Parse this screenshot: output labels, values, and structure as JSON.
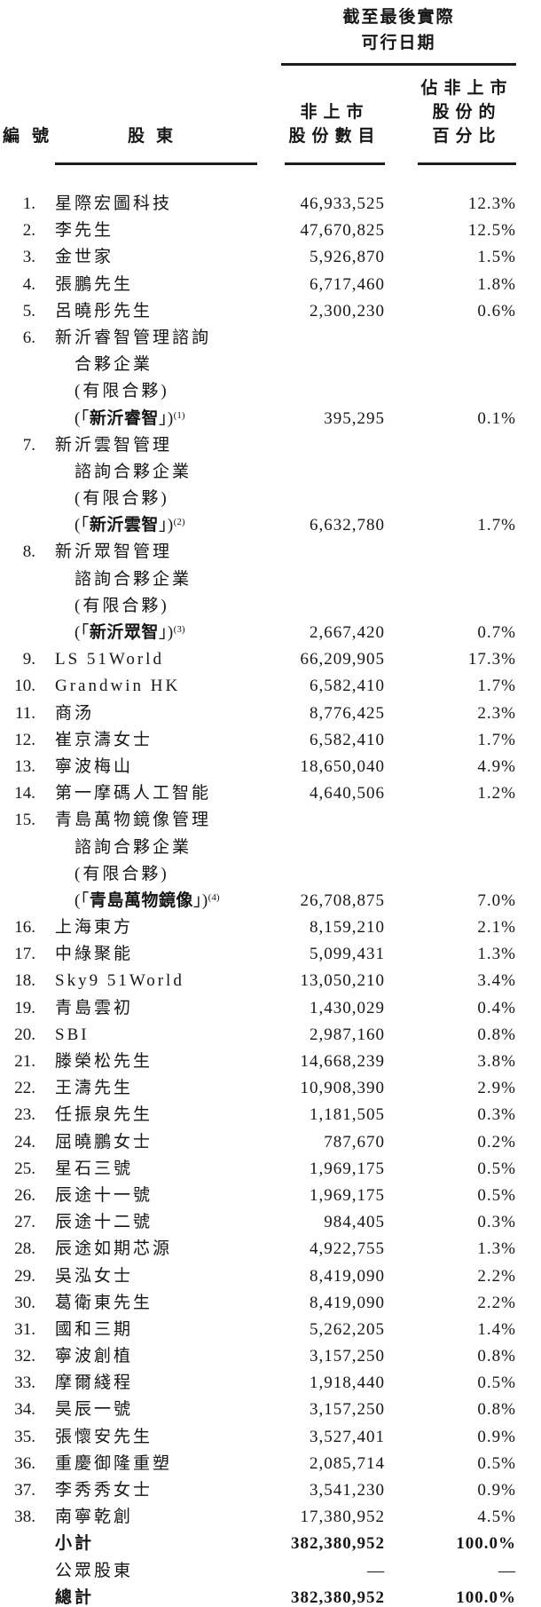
{
  "header": {
    "group_title_lines": [
      "截至最後實際",
      "可行日期"
    ],
    "columns": {
      "no": "編號",
      "shareholder": "股東",
      "unlisted_shares_lines": [
        "非上市",
        "股份數目"
      ],
      "pct_lines": [
        "佔非上市",
        "股份的",
        "百分比"
      ]
    }
  },
  "rows": [
    {
      "no": "1.",
      "lines": [
        "星際宏圖科技"
      ],
      "shares": "46,933,525",
      "pct": "12.3%"
    },
    {
      "no": "2.",
      "lines": [
        "李先生"
      ],
      "shares": "47,670,825",
      "pct": "12.5%"
    },
    {
      "no": "3.",
      "lines": [
        "金世家"
      ],
      "shares": "5,926,870",
      "pct": "1.5%"
    },
    {
      "no": "4.",
      "lines": [
        "張鵬先生"
      ],
      "shares": "6,717,460",
      "pct": "1.8%"
    },
    {
      "no": "5.",
      "lines": [
        "呂曉彤先生"
      ],
      "shares": "2,300,230",
      "pct": "0.6%"
    },
    {
      "no": "6.",
      "lines": [
        "新沂睿智管理諮詢",
        "合夥企業",
        "(有限合夥)"
      ],
      "quoted": {
        "open": "(「",
        "bold": "新沂睿智",
        "close": "」)",
        "sup": "(1)"
      },
      "shares": "395,295",
      "pct": "0.1%"
    },
    {
      "no": "7.",
      "lines": [
        "新沂雲智管理",
        "諮詢合夥企業",
        "(有限合夥)"
      ],
      "quoted": {
        "open": "(「",
        "bold": "新沂雲智",
        "close": "」)",
        "sup": "(2)"
      },
      "shares": "6,632,780",
      "pct": "1.7%"
    },
    {
      "no": "8.",
      "lines": [
        "新沂眾智管理",
        "諮詢合夥企業",
        "(有限合夥)"
      ],
      "quoted": {
        "open": "(「",
        "bold": "新沂眾智",
        "close": "」)",
        "sup": "(3)"
      },
      "shares": "2,667,420",
      "pct": "0.7%"
    },
    {
      "no": "9.",
      "lines": [
        "LS 51World"
      ],
      "shares": "66,209,905",
      "pct": "17.3%"
    },
    {
      "no": "10.",
      "lines": [
        "Grandwin HK"
      ],
      "shares": "6,582,410",
      "pct": "1.7%"
    },
    {
      "no": "11.",
      "lines": [
        "商汤"
      ],
      "shares": "8,776,425",
      "pct": "2.3%"
    },
    {
      "no": "12.",
      "lines": [
        "崔京濤女士"
      ],
      "shares": "6,582,410",
      "pct": "1.7%"
    },
    {
      "no": "13.",
      "lines": [
        "寧波梅山"
      ],
      "shares": "18,650,040",
      "pct": "4.9%"
    },
    {
      "no": "14.",
      "lines": [
        "第一摩碼人工智能"
      ],
      "shares": "4,640,506",
      "pct": "1.2%"
    },
    {
      "no": "15.",
      "lines": [
        "青島萬物鏡像管理",
        "諮詢合夥企業",
        "(有限合夥)"
      ],
      "quoted": {
        "open": "(「",
        "bold": "青島萬物鏡像",
        "close": "」)",
        "sup": "(4)"
      },
      "shares": "26,708,875",
      "pct": "7.0%"
    },
    {
      "no": "16.",
      "lines": [
        "上海東方"
      ],
      "shares": "8,159,210",
      "pct": "2.1%"
    },
    {
      "no": "17.",
      "lines": [
        "中綠聚能"
      ],
      "shares": "5,099,431",
      "pct": "1.3%"
    },
    {
      "no": "18.",
      "lines": [
        "Sky9 51World"
      ],
      "shares": "13,050,210",
      "pct": "3.4%"
    },
    {
      "no": "19.",
      "lines": [
        "青島雲初"
      ],
      "shares": "1,430,029",
      "pct": "0.4%"
    },
    {
      "no": "20.",
      "lines": [
        "SBI"
      ],
      "shares": "2,987,160",
      "pct": "0.8%"
    },
    {
      "no": "21.",
      "lines": [
        "滕榮松先生"
      ],
      "shares": "14,668,239",
      "pct": "3.8%"
    },
    {
      "no": "22.",
      "lines": [
        "王濤先生"
      ],
      "shares": "10,908,390",
      "pct": "2.9%"
    },
    {
      "no": "23.",
      "lines": [
        "任振泉先生"
      ],
      "shares": "1,181,505",
      "pct": "0.3%"
    },
    {
      "no": "24.",
      "lines": [
        "屈曉鵬女士"
      ],
      "shares": "787,670",
      "pct": "0.2%"
    },
    {
      "no": "25.",
      "lines": [
        "星石三號"
      ],
      "shares": "1,969,175",
      "pct": "0.5%"
    },
    {
      "no": "26.",
      "lines": [
        "辰途十一號"
      ],
      "shares": "1,969,175",
      "pct": "0.5%"
    },
    {
      "no": "27.",
      "lines": [
        "辰途十二號"
      ],
      "shares": "984,405",
      "pct": "0.3%"
    },
    {
      "no": "28.",
      "lines": [
        "辰途如期芯源"
      ],
      "shares": "4,922,755",
      "pct": "1.3%"
    },
    {
      "no": "29.",
      "lines": [
        "吳泓女士"
      ],
      "shares": "8,419,090",
      "pct": "2.2%"
    },
    {
      "no": "30.",
      "lines": [
        "葛衛東先生"
      ],
      "shares": "8,419,090",
      "pct": "2.2%"
    },
    {
      "no": "31.",
      "lines": [
        "國和三期"
      ],
      "shares": "5,262,205",
      "pct": "1.4%"
    },
    {
      "no": "32.",
      "lines": [
        "寧波創植"
      ],
      "shares": "3,157,250",
      "pct": "0.8%"
    },
    {
      "no": "33.",
      "lines": [
        "摩爾綫程"
      ],
      "shares": "1,918,440",
      "pct": "0.5%"
    },
    {
      "no": "34.",
      "lines": [
        "昊辰一號"
      ],
      "shares": "3,157,250",
      "pct": "0.8%"
    },
    {
      "no": "35.",
      "lines": [
        "張懷安先生"
      ],
      "shares": "3,527,401",
      "pct": "0.9%"
    },
    {
      "no": "36.",
      "lines": [
        "重慶御隆重塑"
      ],
      "shares": "2,085,714",
      "pct": "0.5%"
    },
    {
      "no": "37.",
      "lines": [
        "李秀秀女士"
      ],
      "shares": "3,541,230",
      "pct": "0.9%"
    },
    {
      "no": "38.",
      "lines": [
        "南寧乾創"
      ],
      "shares": "17,380,952",
      "pct": "4.5%"
    },
    {
      "lines": [
        "小計"
      ],
      "shares": "382,380,952",
      "pct": "100.0%",
      "bold": true,
      "summary": true
    },
    {
      "lines": [
        "公眾股東"
      ],
      "shares": "—",
      "pct": "—",
      "summary": true
    },
    {
      "lines": [
        "總計"
      ],
      "shares": "382,380,952",
      "pct": "100.0%",
      "bold": true,
      "summary": true
    }
  ],
  "text_color": "#161616",
  "rule_color": "#1c1c1c"
}
